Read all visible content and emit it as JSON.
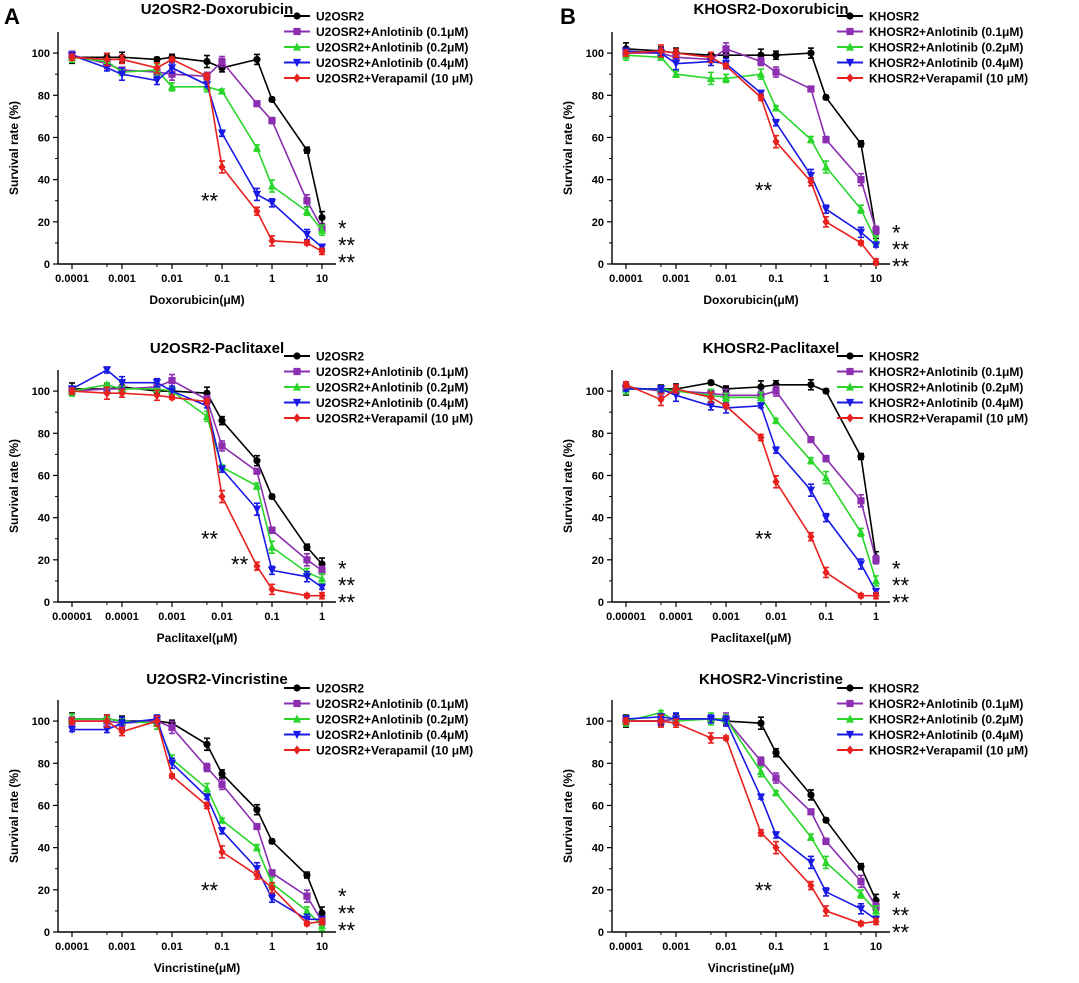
{
  "figure": {
    "panel_labels": [
      "A",
      "B"
    ],
    "series_colors": {
      "control": "#000000",
      "anlotinib_0_1": "#8b2fb0",
      "anlotinib_0_2": "#2bd62b",
      "anlotinib_0_4": "#1a1ae6",
      "verapamil": "#e8201e"
    }
  },
  "chart_data": [
    {
      "type": "line",
      "title": "U2OSR2-Doxorubicin",
      "xlabel": "Doxorubicin(μM)",
      "ylabel": "Survival rate (%)",
      "xscale": "log",
      "xlim": [
        0.0001,
        10
      ],
      "xticks": [
        "0.0001",
        "0.001",
        "0.01",
        "0.1",
        "1",
        "10"
      ],
      "xtick_values": [
        0.0001,
        0.001,
        0.01,
        0.1,
        1,
        10
      ],
      "ylim": [
        0,
        110
      ],
      "yticks": [
        0,
        20,
        40,
        60,
        80,
        100
      ],
      "x": [
        0.0001,
        0.0005,
        0.001,
        0.005,
        0.01,
        0.05,
        0.1,
        0.5,
        1,
        5,
        10
      ],
      "series": [
        {
          "name": "U2OSR2",
          "color": "#000000",
          "values": [
            98,
            98,
            98,
            97,
            98,
            96,
            93,
            97,
            78,
            54,
            22
          ]
        },
        {
          "name": "U2OSR2+Anlotinib (0.1μM)",
          "color": "#8b2fb0",
          "values": [
            99,
            95,
            92,
            91,
            90,
            89,
            96,
            76,
            68,
            30,
            17
          ]
        },
        {
          "name": "U2OSR2+Anlotinib (0.2μM)",
          "color": "#2bd62b",
          "values": [
            98,
            96,
            91,
            92,
            84,
            84,
            82,
            55,
            37,
            25,
            16
          ]
        },
        {
          "name": "U2OSR2+Anlotinib (0.4μM)",
          "color": "#1a1ae6",
          "values": [
            99,
            93,
            90,
            87,
            93,
            85,
            62,
            33,
            29,
            14,
            8
          ]
        },
        {
          "name": "U2OSR2+Verapamil (10 μM)",
          "color": "#e8201e",
          "values": [
            98,
            97,
            97,
            93,
            97,
            89,
            46,
            25,
            11,
            10,
            6
          ]
        }
      ],
      "annotations": [
        {
          "text": "**",
          "at_x": 0.05,
          "at_y": 30
        },
        {
          "text": "*",
          "at_x": 20,
          "at_y": 17
        },
        {
          "text": "**",
          "at_x": 20,
          "at_y": 9
        },
        {
          "text": "**",
          "at_x": 20,
          "at_y": 1
        }
      ]
    },
    {
      "type": "line",
      "title": "KHOSR2-Doxorubicin",
      "xlabel": "Doxorubicin(μM)",
      "ylabel": "Survival rate (%)",
      "xscale": "log",
      "xlim": [
        0.0001,
        10
      ],
      "xticks": [
        "0.0001",
        "0.001",
        "0.01",
        "0.1",
        "1",
        "10"
      ],
      "xtick_values": [
        0.0001,
        0.001,
        0.01,
        0.1,
        1,
        10
      ],
      "ylim": [
        0,
        110
      ],
      "yticks": [
        0,
        20,
        40,
        60,
        80,
        100
      ],
      "x": [
        0.0001,
        0.0005,
        0.001,
        0.005,
        0.01,
        0.05,
        0.1,
        0.5,
        1,
        5,
        10
      ],
      "series": [
        {
          "name": "KHOSR2",
          "color": "#000000",
          "values": [
            102,
            101,
            100,
            99,
            99,
            99,
            99,
            100,
            79,
            57,
            15
          ]
        },
        {
          "name": "KHOSR2+Anlotinib (0.1μM)",
          "color": "#8b2fb0",
          "values": [
            100,
            100,
            98,
            97,
            102,
            96,
            91,
            83,
            59,
            40,
            16
          ]
        },
        {
          "name": "KHOSR2+Anlotinib (0.2μM)",
          "color": "#2bd62b",
          "values": [
            99,
            98,
            90,
            88,
            88,
            90,
            74,
            59,
            46,
            26,
            11
          ]
        },
        {
          "name": "KHOSR2+Anlotinib (0.4μM)",
          "color": "#1a1ae6",
          "values": [
            101,
            100,
            95,
            96,
            95,
            81,
            67,
            42,
            26,
            15,
            9
          ]
        },
        {
          "name": "KHOSR2+Verapamil (10 μM)",
          "color": "#e8201e",
          "values": [
            100,
            101,
            100,
            98,
            94,
            79,
            58,
            39,
            20,
            10,
            1
          ]
        }
      ],
      "annotations": [
        {
          "text": "**",
          "at_x": 0.05,
          "at_y": 35
        },
        {
          "text": "*",
          "at_x": 20,
          "at_y": 15
        },
        {
          "text": "**",
          "at_x": 20,
          "at_y": 7
        },
        {
          "text": "**",
          "at_x": 20,
          "at_y": -1
        }
      ]
    },
    {
      "type": "line",
      "title": "U2OSR2-Paclitaxel",
      "xlabel": "Paclitaxel(μM)",
      "ylabel": "Survival rate (%)",
      "xscale": "log",
      "xlim": [
        1e-05,
        1
      ],
      "xticks": [
        "0.00001",
        "0.0001",
        "0.001",
        "0.01",
        "0.1",
        "1"
      ],
      "xtick_values": [
        1e-05,
        0.0001,
        0.001,
        0.01,
        0.1,
        1
      ],
      "ylim": [
        0,
        110
      ],
      "yticks": [
        0,
        20,
        40,
        60,
        80,
        100
      ],
      "x": [
        1e-05,
        5e-05,
        0.0001,
        0.0005,
        0.001,
        0.005,
        0.01,
        0.05,
        0.1,
        0.5,
        1
      ],
      "series": [
        {
          "name": "U2OSR2",
          "color": "#000000",
          "values": [
            101,
            101,
            102,
            100,
            100,
            99,
            86,
            67,
            50,
            26,
            18
          ]
        },
        {
          "name": "U2OSR2+Anlotinib (0.1μM)",
          "color": "#8b2fb0",
          "values": [
            100,
            101,
            101,
            102,
            105,
            96,
            74,
            62,
            34,
            20,
            15
          ]
        },
        {
          "name": "U2OSR2+Anlotinib (0.2μM)",
          "color": "#2bd62b",
          "values": [
            100,
            103,
            101,
            101,
            100,
            88,
            64,
            55,
            26,
            14,
            11
          ]
        },
        {
          "name": "U2OSR2+Anlotinib (0.4μM)",
          "color": "#1a1ae6",
          "values": [
            101,
            110,
            104,
            104,
            100,
            93,
            63,
            44,
            15,
            12,
            7
          ]
        },
        {
          "name": "U2OSR2+Verapamil (10 μM)",
          "color": "#e8201e",
          "values": [
            100,
            99,
            99,
            98,
            97,
            95,
            50,
            17,
            6,
            3,
            3
          ]
        }
      ],
      "annotations": [
        {
          "text": "**",
          "at_x": 0.005,
          "at_y": 30
        },
        {
          "text": "**",
          "at_x": 0.02,
          "at_y": 18
        },
        {
          "text": "*",
          "at_x": 2,
          "at_y": 16
        },
        {
          "text": "**",
          "at_x": 2,
          "at_y": 8
        },
        {
          "text": "**",
          "at_x": 2,
          "at_y": 0
        }
      ]
    },
    {
      "type": "line",
      "title": "KHOSR2-Paclitaxel",
      "xlabel": "Paclitaxel(μM)",
      "ylabel": "Survival rate (%)",
      "xscale": "log",
      "xlim": [
        1e-05,
        1
      ],
      "xticks": [
        "0.00001",
        "0.0001",
        "0.001",
        "0.01",
        "0.1",
        "1"
      ],
      "xtick_values": [
        1e-05,
        0.0001,
        0.001,
        0.01,
        0.1,
        1
      ],
      "ylim": [
        0,
        110
      ],
      "yticks": [
        0,
        20,
        40,
        60,
        80,
        100
      ],
      "x": [
        1e-05,
        5e-05,
        0.0001,
        0.0005,
        0.001,
        0.005,
        0.01,
        0.05,
        0.1,
        0.5,
        1
      ],
      "series": [
        {
          "name": "KHOSR2",
          "color": "#000000",
          "values": [
            101,
            101,
            101,
            104,
            101,
            102,
            103,
            103,
            100,
            69,
            21
          ]
        },
        {
          "name": "KHOSR2+Anlotinib (0.1μM)",
          "color": "#8b2fb0",
          "values": [
            102,
            100,
            100,
            99,
            98,
            98,
            100,
            77,
            68,
            48,
            20
          ]
        },
        {
          "name": "KHOSR2+Anlotinib (0.2μM)",
          "color": "#2bd62b",
          "values": [
            101,
            101,
            100,
            98,
            97,
            97,
            86,
            67,
            59,
            33,
            10
          ]
        },
        {
          "name": "KHOSR2+Anlotinib (0.4μM)",
          "color": "#1a1ae6",
          "values": [
            101,
            101,
            98,
            93,
            92,
            93,
            72,
            53,
            40,
            18,
            5
          ]
        },
        {
          "name": "KHOSR2+Verapamil (10 μM)",
          "color": "#e8201e",
          "values": [
            103,
            96,
            101,
            97,
            93,
            78,
            57,
            31,
            14,
            3,
            3
          ]
        }
      ],
      "annotations": [
        {
          "text": "**",
          "at_x": 0.005,
          "at_y": 30
        },
        {
          "text": "*",
          "at_x": 2,
          "at_y": 16
        },
        {
          "text": "**",
          "at_x": 2,
          "at_y": 8
        },
        {
          "text": "**",
          "at_x": 2,
          "at_y": 0
        }
      ]
    },
    {
      "type": "line",
      "title": "U2OSR2-Vincristine",
      "xlabel": "Vincristine(μM)",
      "ylabel": "Survival rate (%)",
      "xscale": "log",
      "xlim": [
        0.0001,
        10
      ],
      "xticks": [
        "0.0001",
        "0.001",
        "0.01",
        "0.1",
        "1",
        "10"
      ],
      "xtick_values": [
        0.0001,
        0.001,
        0.01,
        0.1,
        1,
        10
      ],
      "ylim": [
        0,
        110
      ],
      "yticks": [
        0,
        20,
        40,
        60,
        80,
        100
      ],
      "x": [
        0.0001,
        0.0005,
        0.001,
        0.005,
        0.01,
        0.05,
        0.1,
        0.5,
        1,
        5,
        10
      ],
      "series": [
        {
          "name": "U2OSR2",
          "color": "#000000",
          "values": [
            101,
            101,
            100,
            100,
            99,
            89,
            75,
            58,
            43,
            27,
            9
          ]
        },
        {
          "name": "U2OSR2+Anlotinib (0.1μM)",
          "color": "#8b2fb0",
          "values": [
            100,
            100,
            99,
            100,
            97,
            78,
            70,
            50,
            28,
            17,
            5
          ]
        },
        {
          "name": "U2OSR2+Anlotinib (0.2μM)",
          "color": "#2bd62b",
          "values": [
            101,
            101,
            100,
            99,
            82,
            68,
            53,
            40,
            23,
            10,
            3
          ]
        },
        {
          "name": "U2OSR2+Anlotinib (0.4μM)",
          "color": "#1a1ae6",
          "values": [
            96,
            96,
            99,
            101,
            80,
            64,
            48,
            30,
            16,
            6,
            6
          ]
        },
        {
          "name": "U2OSR2+Verapamil (10 μM)",
          "color": "#e8201e",
          "values": [
            100,
            100,
            95,
            100,
            74,
            60,
            38,
            27,
            21,
            4,
            5
          ]
        }
      ],
      "annotations": [
        {
          "text": "**",
          "at_x": 0.05,
          "at_y": 20
        },
        {
          "text": "*",
          "at_x": 20,
          "at_y": 17
        },
        {
          "text": "**",
          "at_x": 20,
          "at_y": 9
        },
        {
          "text": "**",
          "at_x": 20,
          "at_y": 1
        }
      ]
    },
    {
      "type": "line",
      "title": "KHOSR2-Vincristine",
      "xlabel": "Vincristine(μM)",
      "ylabel": "Survival rate (%)",
      "xscale": "log",
      "xlim": [
        0.0001,
        10
      ],
      "xticks": [
        "0.0001",
        "0.001",
        "0.01",
        "0.1",
        "1",
        "10"
      ],
      "xtick_values": [
        0.0001,
        0.001,
        0.01,
        0.1,
        1,
        10
      ],
      "ylim": [
        0,
        110
      ],
      "yticks": [
        0,
        20,
        40,
        60,
        80,
        100
      ],
      "x": [
        0.0001,
        0.0005,
        0.001,
        0.005,
        0.01,
        0.05,
        0.1,
        0.5,
        1,
        5,
        10
      ],
      "series": [
        {
          "name": "KHOSR2",
          "color": "#000000",
          "values": [
            100,
            100,
            101,
            101,
            100,
            99,
            85,
            65,
            53,
            31,
            15
          ]
        },
        {
          "name": "KHOSR2+Anlotinib (0.1μM)",
          "color": "#8b2fb0",
          "values": [
            100,
            100,
            101,
            101,
            101,
            81,
            73,
            57,
            43,
            24,
            12
          ]
        },
        {
          "name": "KHOSR2+Anlotinib (0.2μM)",
          "color": "#2bd62b",
          "values": [
            100,
            104,
            100,
            101,
            101,
            76,
            66,
            45,
            33,
            18,
            10
          ]
        },
        {
          "name": "KHOSR2+Anlotinib (0.4μM)",
          "color": "#1a1ae6",
          "values": [
            101,
            102,
            101,
            101,
            100,
            64,
            46,
            33,
            19,
            11,
            6
          ]
        },
        {
          "name": "KHOSR2+Verapamil (10 μM)",
          "color": "#e8201e",
          "values": [
            100,
            100,
            99,
            92,
            92,
            47,
            40,
            22,
            10,
            4,
            5
          ]
        }
      ],
      "annotations": [
        {
          "text": "**",
          "at_x": 0.05,
          "at_y": 20
        },
        {
          "text": "*",
          "at_x": 20,
          "at_y": 16
        },
        {
          "text": "**",
          "at_x": 20,
          "at_y": 8
        },
        {
          "text": "**",
          "at_x": 20,
          "at_y": 0
        }
      ]
    }
  ]
}
